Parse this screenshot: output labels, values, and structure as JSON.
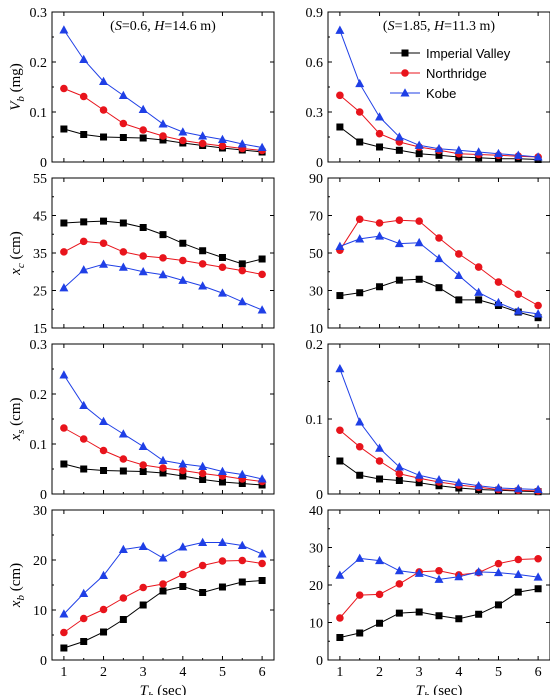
{
  "chart_data": {
    "type": "line",
    "x_label_main": "T",
    "x_label_sub": "b",
    "x_label_rest": " (sec)",
    "x_ticks": [
      "1",
      "2",
      "3",
      "4",
      "5",
      "6"
    ],
    "colors": {
      "imperial_valley": "#000000",
      "northridge": "#e8141c",
      "kobe": "#1f3fe6"
    },
    "legend": {
      "placement": "top-right",
      "entries": [
        "Imperial Valley",
        "Northridge",
        "Kobe"
      ]
    },
    "annotations": {
      "left": [
        "(",
        "S",
        "=0.6, ",
        "H",
        "=14.6 m)"
      ],
      "right": [
        "(",
        "S",
        "=1.85, ",
        "H",
        "=11.3 m)"
      ]
    },
    "x": [
      1,
      1.5,
      2,
      2.5,
      3,
      3.5,
      4,
      4.5,
      5,
      5.5,
      6
    ],
    "panels": [
      {
        "id": "vb-left",
        "row": 0,
        "col": 0,
        "ylabel_main": "V",
        "ylabel_sub": "b",
        "ylabel_rest": " (mg)",
        "ylim": [
          0,
          0.3
        ],
        "yticks": [
          "0",
          "0.1",
          "0.2",
          "0.3"
        ],
        "series": [
          {
            "name": "Imperial Valley",
            "values": [
              0.066,
              0.055,
              0.05,
              0.049,
              0.048,
              0.044,
              0.038,
              0.033,
              0.028,
              0.024,
              0.02
            ]
          },
          {
            "name": "Northridge",
            "values": [
              0.147,
              0.131,
              0.104,
              0.077,
              0.064,
              0.052,
              0.043,
              0.037,
              0.032,
              0.027,
              0.023
            ]
          },
          {
            "name": "Kobe",
            "values": [
              0.264,
              0.205,
              0.161,
              0.133,
              0.105,
              0.076,
              0.06,
              0.052,
              0.045,
              0.036,
              0.029
            ]
          }
        ]
      },
      {
        "id": "vb-right",
        "row": 0,
        "col": 1,
        "ylabel_main": "",
        "ylabel_sub": "",
        "ylabel_rest": "",
        "ylim": [
          0,
          0.9
        ],
        "yticks": [
          "0",
          "0.3",
          "0.6",
          "0.9"
        ],
        "series": [
          {
            "name": "Imperial Valley",
            "values": [
              0.21,
              0.12,
              0.09,
              0.07,
              0.05,
              0.04,
              0.03,
              0.025,
              0.02,
              0.02,
              0.015
            ]
          },
          {
            "name": "Northridge",
            "values": [
              0.4,
              0.3,
              0.17,
              0.12,
              0.09,
              0.07,
              0.05,
              0.045,
              0.04,
              0.035,
              0.03
            ]
          },
          {
            "name": "Kobe",
            "values": [
              0.79,
              0.47,
              0.27,
              0.15,
              0.1,
              0.08,
              0.07,
              0.06,
              0.05,
              0.04,
              0.03
            ]
          }
        ]
      },
      {
        "id": "xc-left",
        "row": 1,
        "col": 0,
        "ylabel_main": "x",
        "ylabel_sub": "c",
        "ylabel_rest": " (cm)",
        "ylim": [
          15,
          55
        ],
        "yticks": [
          "15",
          "25",
          "35",
          "45",
          "55"
        ],
        "series": [
          {
            "name": "Imperial Valley",
            "values": [
              43.0,
              43.3,
              43.5,
              43.0,
              41.8,
              39.9,
              37.6,
              35.6,
              33.8,
              32.1,
              33.4
            ]
          },
          {
            "name": "Northridge",
            "values": [
              35.3,
              38.1,
              37.6,
              35.3,
              34.2,
              33.7,
              33.0,
              32.1,
              31.2,
              30.3,
              29.3
            ]
          },
          {
            "name": "Kobe",
            "values": [
              25.7,
              30.5,
              32.0,
              31.2,
              30.0,
              29.2,
              27.7,
              26.2,
              24.3,
              22.0,
              19.8
            ]
          }
        ]
      },
      {
        "id": "xc-right",
        "row": 1,
        "col": 1,
        "ylabel_main": "",
        "ylabel_sub": "",
        "ylabel_rest": "",
        "ylim": [
          10,
          90
        ],
        "yticks": [
          "10",
          "30",
          "50",
          "70",
          "90"
        ],
        "series": [
          {
            "name": "Imperial Valley",
            "values": [
              27.3,
              28.8,
              32.0,
              35.5,
              36.0,
              31.5,
              25.0,
              25.0,
              22.0,
              18.5,
              15.5
            ]
          },
          {
            "name": "Northridge",
            "values": [
              51.5,
              68.0,
              66.0,
              67.5,
              67.0,
              58.0,
              49.5,
              42.5,
              34.5,
              28.0,
              22.0
            ]
          },
          {
            "name": "Kobe",
            "values": [
              53.5,
              57.5,
              59.0,
              55.0,
              55.5,
              47.0,
              38.0,
              29.0,
              23.5,
              19.0,
              17.5
            ]
          }
        ]
      },
      {
        "id": "xs-left",
        "row": 2,
        "col": 0,
        "ylabel_main": "x",
        "ylabel_sub": "s",
        "ylabel_rest": " (cm)",
        "ylim": [
          0,
          0.3
        ],
        "yticks": [
          "0",
          "0.1",
          "0.2",
          "0.3"
        ],
        "series": [
          {
            "name": "Imperial Valley",
            "values": [
              0.06,
              0.05,
              0.047,
              0.046,
              0.045,
              0.042,
              0.036,
              0.029,
              0.024,
              0.021,
              0.018
            ]
          },
          {
            "name": "Northridge",
            "values": [
              0.132,
              0.11,
              0.087,
              0.07,
              0.058,
              0.052,
              0.047,
              0.041,
              0.036,
              0.03,
              0.025
            ]
          },
          {
            "name": "Kobe",
            "values": [
              0.238,
              0.177,
              0.145,
              0.12,
              0.095,
              0.067,
              0.06,
              0.055,
              0.045,
              0.039,
              0.03
            ]
          }
        ]
      },
      {
        "id": "xs-right",
        "row": 2,
        "col": 1,
        "ylabel_main": "",
        "ylabel_sub": "",
        "ylabel_rest": "",
        "ylim": [
          0,
          0.2
        ],
        "yticks": [
          "0",
          "0.1",
          "0.2"
        ],
        "series": [
          {
            "name": "Imperial Valley",
            "values": [
              0.044,
              0.025,
              0.02,
              0.018,
              0.015,
              0.011,
              0.008,
              0.006,
              0.005,
              0.004,
              0.003
            ]
          },
          {
            "name": "Northridge",
            "values": [
              0.085,
              0.063,
              0.044,
              0.027,
              0.021,
              0.016,
              0.012,
              0.009,
              0.006,
              0.005,
              0.004
            ]
          },
          {
            "name": "Kobe",
            "values": [
              0.167,
              0.096,
              0.061,
              0.036,
              0.025,
              0.019,
              0.015,
              0.011,
              0.008,
              0.007,
              0.006
            ]
          }
        ]
      },
      {
        "id": "xb-left",
        "row": 3,
        "col": 0,
        "ylabel_main": "x",
        "ylabel_sub": "b",
        "ylabel_rest": " (cm)",
        "ylim": [
          0,
          30
        ],
        "yticks": [
          "0",
          "10",
          "20",
          "30"
        ],
        "series": [
          {
            "name": "Imperial Valley",
            "values": [
              2.4,
              3.7,
              5.6,
              8.1,
              11.0,
              13.8,
              14.7,
              13.5,
              14.6,
              15.6,
              15.9
            ]
          },
          {
            "name": "Northridge",
            "values": [
              5.5,
              8.3,
              10.1,
              12.4,
              14.5,
              15.2,
              17.1,
              18.9,
              19.8,
              19.9,
              19.3
            ]
          },
          {
            "name": "Kobe",
            "values": [
              9.2,
              13.3,
              16.9,
              22.1,
              22.7,
              20.4,
              22.6,
              23.5,
              23.5,
              22.9,
              21.2
            ]
          }
        ]
      },
      {
        "id": "xb-right",
        "row": 3,
        "col": 1,
        "ylabel_main": "",
        "ylabel_sub": "",
        "ylabel_rest": "",
        "ylim": [
          0,
          40
        ],
        "yticks": [
          "0",
          "10",
          "20",
          "30",
          "40"
        ],
        "series": [
          {
            "name": "Imperial Valley",
            "values": [
              6.0,
              7.2,
              9.8,
              12.5,
              12.8,
              11.8,
              11.0,
              12.2,
              14.7,
              18.1,
              19.0
            ]
          },
          {
            "name": "Northridge",
            "values": [
              11.2,
              17.3,
              17.5,
              20.3,
              23.5,
              23.8,
              22.7,
              23.3,
              25.7,
              26.8,
              27.0
            ]
          },
          {
            "name": "Kobe",
            "values": [
              22.6,
              27.1,
              26.5,
              23.8,
              23.1,
              21.5,
              22.2,
              23.5,
              23.3,
              22.8,
              22.1
            ]
          }
        ]
      }
    ]
  }
}
